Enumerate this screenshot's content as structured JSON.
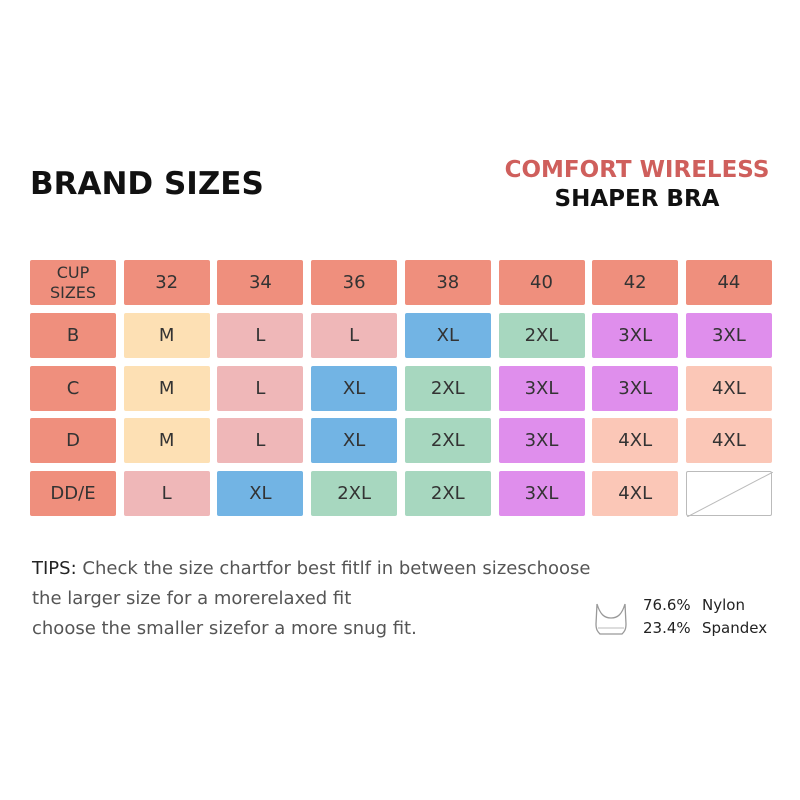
{
  "header": {
    "title": "BRAND SIZES",
    "product_line1": "COMFORT WIRELESS",
    "product_line2": "SHAPER BRA"
  },
  "table": {
    "columns": [
      "CUP SIZES",
      "32",
      "34",
      "36",
      "38",
      "40",
      "42",
      "44"
    ],
    "rows": [
      [
        "B",
        "M",
        "L",
        "L",
        "XL",
        "2XL",
        "3XL",
        "3XL"
      ],
      [
        "C",
        "M",
        "L",
        "XL",
        "2XL",
        "3XL",
        "3XL",
        "4XL"
      ],
      [
        "D",
        "M",
        "L",
        "XL",
        "2XL",
        "3XL",
        "4XL",
        "4XL"
      ],
      [
        "DD/E",
        "L",
        "XL",
        "2XL",
        "2XL",
        "3XL",
        "4XL",
        null
      ]
    ]
  },
  "tips": {
    "label": "TIPS:",
    "lines": [
      "Check the size chartfor best fitlf in between sizeschoose",
      "the larger size for a morerelaxed fit",
      "choose the smaller sizefor a more snug fit."
    ]
  },
  "composition": [
    {
      "percent": "76.6%",
      "material": "Nylon"
    },
    {
      "percent": "23.4%",
      "material": "Spandex"
    }
  ]
}
